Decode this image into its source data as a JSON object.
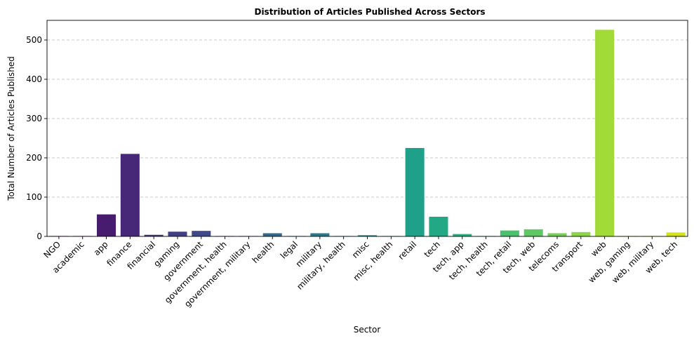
{
  "chart_data": {
    "type": "bar",
    "title": "Distribution of Articles Published Across Sectors",
    "xlabel": "Sector",
    "ylabel": "Total Number of Articles Published",
    "ylim": [
      0,
      550
    ],
    "yticks": [
      0,
      100,
      200,
      300,
      400,
      500
    ],
    "grid": "y-dashed",
    "categories": [
      "NGO",
      "academic",
      "app",
      "finance",
      "financial",
      "gaming",
      "government",
      "government, health",
      "government, military",
      "health",
      "legal",
      "military",
      "military, health",
      "misc",
      "misc, health",
      "retail",
      "tech",
      "tech, app",
      "tech, health",
      "tech, retail",
      "tech, web",
      "telecoms",
      "transport",
      "web",
      "web, gaming",
      "web, military",
      "web, tech"
    ],
    "values": [
      1,
      1,
      56,
      210,
      4,
      12,
      14,
      1,
      1,
      8,
      1,
      8,
      1,
      3,
      1,
      225,
      50,
      6,
      1,
      15,
      18,
      8,
      11,
      526,
      1,
      1,
      10
    ],
    "colors": [
      "#440154",
      "#470f62",
      "#471c6e",
      "#472878",
      "#45347f",
      "#423f85",
      "#3e4a89",
      "#3a548c",
      "#355e8d",
      "#31688e",
      "#2d718e",
      "#2a7a8e",
      "#27838e",
      "#248d8d",
      "#21968c",
      "#1fa089",
      "#22a884",
      "#2ab07f",
      "#38b977",
      "#4ac16d",
      "#5ec962",
      "#74d055",
      "#8bd646",
      "#a2da37",
      "#badf27",
      "#d2e21b",
      "#d4e21a"
    ]
  }
}
